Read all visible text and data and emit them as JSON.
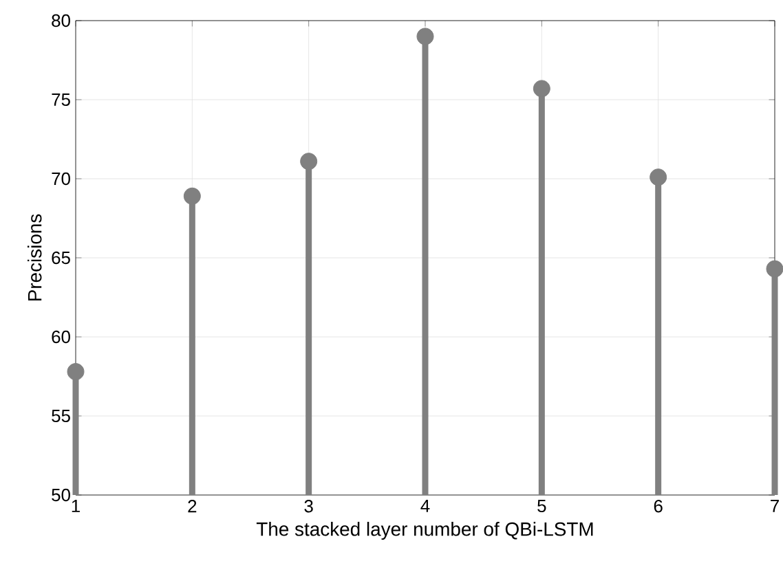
{
  "chart_data": {
    "type": "lollipop",
    "xlabel": "The stacked layer number of QBi-LSTM",
    "ylabel": "Precisions",
    "x": [
      1,
      2,
      3,
      4,
      5,
      6,
      7
    ],
    "values": [
      57.8,
      68.9,
      71.1,
      79.0,
      75.7,
      70.1,
      64.3
    ],
    "color": "#808080",
    "xlim": [
      1,
      7
    ],
    "xticks": [
      1,
      2,
      3,
      4,
      5,
      6,
      7
    ],
    "ylim": [
      50,
      80
    ],
    "yticks": [
      50,
      55,
      60,
      65,
      70,
      75,
      80
    ],
    "grid": true,
    "marker": "circle"
  }
}
